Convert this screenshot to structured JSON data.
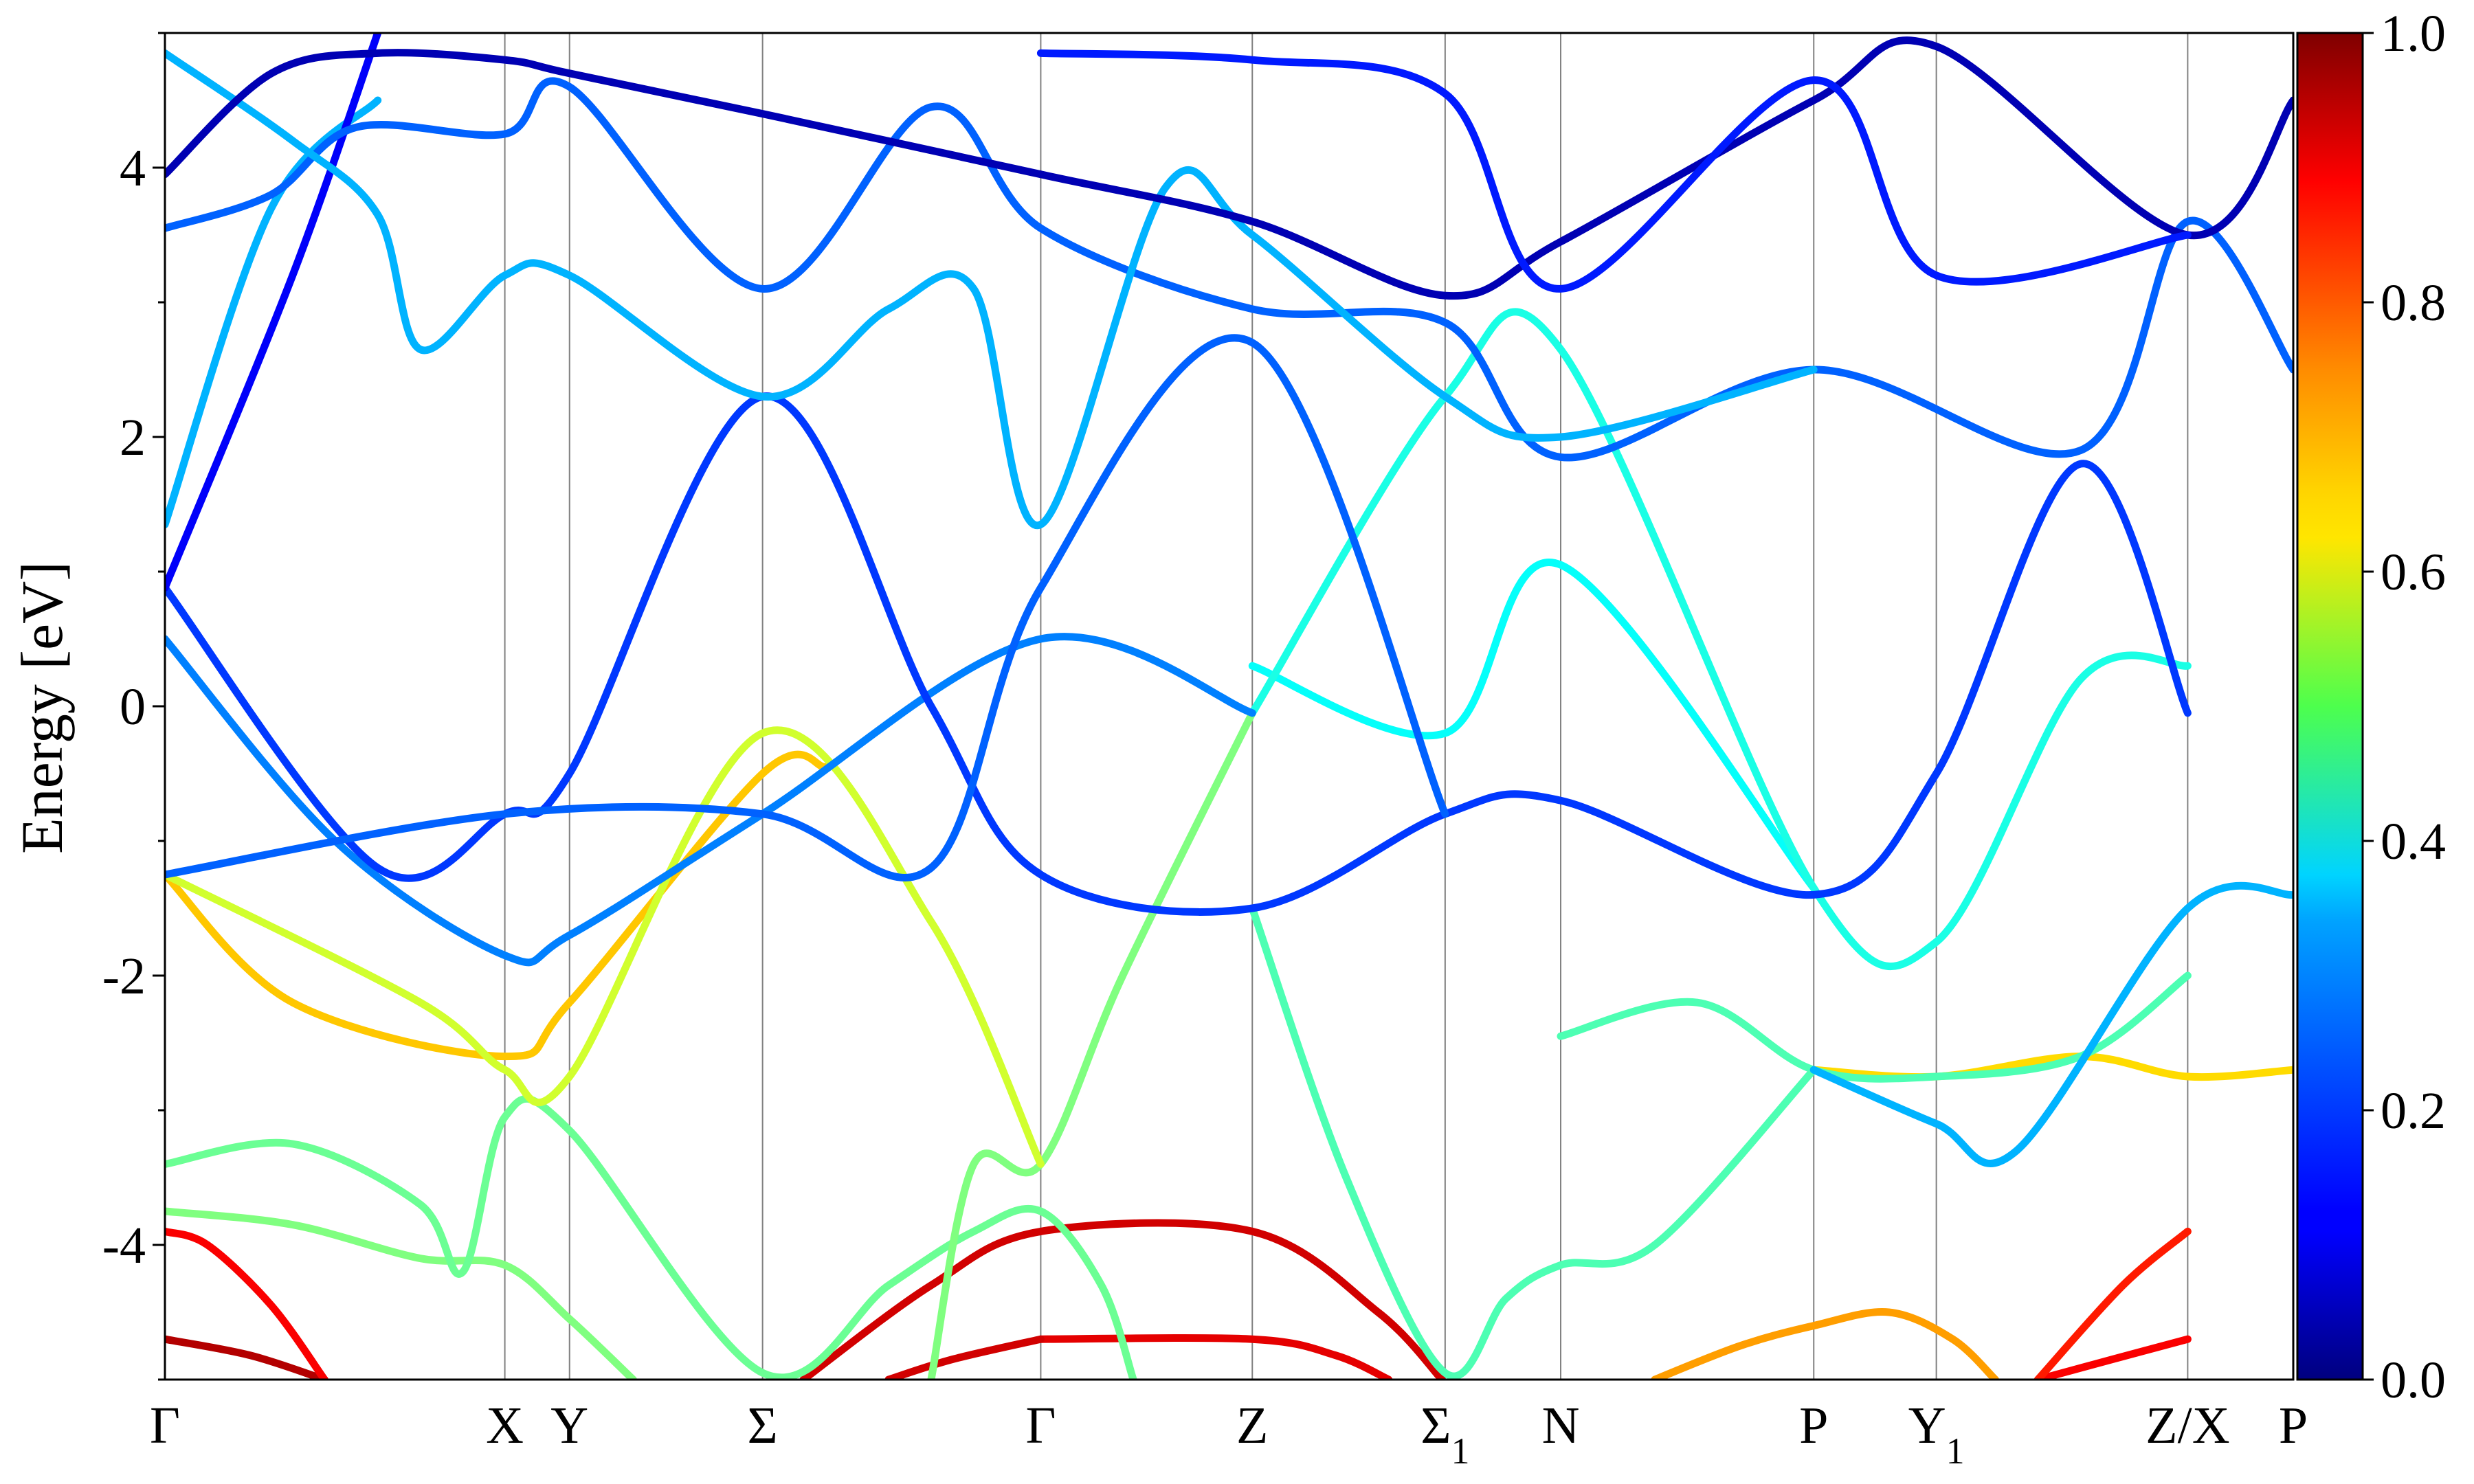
{
  "chart_data": {
    "type": "line",
    "title": "",
    "xlabel": "",
    "ylabel": "Energy [eV]",
    "ylim": [
      -5,
      5
    ],
    "yticks": [
      {
        "value": 4,
        "label": "4"
      },
      {
        "value": 2,
        "label": "2"
      },
      {
        "value": 0,
        "label": "0"
      },
      {
        "value": -2,
        "label": "-2"
      },
      {
        "value": -4,
        "label": "-4"
      }
    ],
    "xlim": [
      0,
      1
    ],
    "kpoints": [
      {
        "pos": 0.0,
        "label": "Γ",
        "sub": ""
      },
      {
        "pos": 0.1597,
        "label": "X",
        "sub": ""
      },
      {
        "pos": 0.1901,
        "label": "Y",
        "sub": ""
      },
      {
        "pos": 0.2808,
        "label": "Σ",
        "sub": ""
      },
      {
        "pos": 0.4115,
        "label": "Γ",
        "sub": ""
      },
      {
        "pos": 0.5109,
        "label": "Z",
        "sub": ""
      },
      {
        "pos": 0.6015,
        "label": "Σ",
        "sub": "1"
      },
      {
        "pos": 0.6558,
        "label": "N",
        "sub": ""
      },
      {
        "pos": 0.7747,
        "label": "P",
        "sub": ""
      },
      {
        "pos": 0.8323,
        "label": "Y",
        "sub": "1"
      },
      {
        "pos": 0.9504,
        "label": "Z/X",
        "sub": ""
      },
      {
        "pos": 1.0,
        "label": "P",
        "sub": ""
      }
    ],
    "colorbar": {
      "colormap": "jet",
      "range": [
        0.0,
        1.0
      ],
      "ticks": [
        {
          "value": 1.0,
          "label": "1.0"
        },
        {
          "value": 0.8,
          "label": "0.8"
        },
        {
          "value": 0.6,
          "label": "0.6"
        },
        {
          "value": 0.4,
          "label": "0.4"
        },
        {
          "value": 0.2,
          "label": "0.2"
        },
        {
          "value": 0.0,
          "label": "0.0"
        }
      ]
    },
    "bands": [
      {
        "c": 0.95,
        "pts": [
          [
            0,
            -4.7
          ],
          [
            0.04,
            -4.82
          ],
          [
            0.075,
            -5.0
          ]
        ]
      },
      {
        "c": 0.9,
        "pts": [
          [
            0.4115,
            -4.7
          ],
          [
            0.5109,
            -4.7
          ],
          [
            0.55,
            -4.82
          ],
          [
            0.575,
            -5.0
          ]
        ]
      },
      {
        "c": 0.92,
        "pts": [
          [
            0.34,
            -5.0
          ],
          [
            0.37,
            -4.85
          ],
          [
            0.4115,
            -4.7
          ]
        ]
      },
      {
        "c": 0.88,
        "pts": [
          [
            0.88,
            -5.0
          ],
          [
            0.915,
            -4.85
          ],
          [
            0.9504,
            -4.7
          ]
        ]
      },
      {
        "c": 0.88,
        "pts": [
          [
            0,
            -3.9
          ],
          [
            0.02,
            -4.0
          ],
          [
            0.05,
            -4.45
          ],
          [
            0.075,
            -5.0
          ]
        ]
      },
      {
        "c": 0.92,
        "pts": [
          [
            0.3,
            -5.0
          ],
          [
            0.36,
            -4.3
          ],
          [
            0.4115,
            -3.9
          ],
          [
            0.5109,
            -3.9
          ],
          [
            0.57,
            -4.5
          ],
          [
            0.6,
            -5.0
          ]
        ]
      },
      {
        "c": 0.85,
        "pts": [
          [
            0.88,
            -5.0
          ],
          [
            0.92,
            -4.3
          ],
          [
            0.9504,
            -3.9
          ]
        ]
      },
      {
        "c": 0.72,
        "pts": [
          [
            0.7,
            -5.0
          ],
          [
            0.74,
            -4.75
          ],
          [
            0.7747,
            -4.6
          ],
          [
            0.81,
            -4.5
          ],
          [
            0.84,
            -4.7
          ],
          [
            0.86,
            -5.0
          ]
        ]
      },
      {
        "c": 0.5,
        "pts": [
          [
            0,
            -3.75
          ],
          [
            0.06,
            -3.85
          ],
          [
            0.12,
            -4.1
          ],
          [
            0.1597,
            -4.15
          ],
          [
            0.1901,
            -4.55
          ],
          [
            0.22,
            -5.0
          ]
        ]
      },
      {
        "c": 0.48,
        "pts": [
          [
            0,
            -3.4
          ],
          [
            0.06,
            -3.25
          ],
          [
            0.12,
            -3.7
          ],
          [
            0.14,
            -4.2
          ],
          [
            0.1597,
            -3.05
          ],
          [
            0.1901,
            -3.15
          ],
          [
            0.2808,
            -4.95
          ],
          [
            0.34,
            -4.3
          ],
          [
            0.38,
            -3.9
          ],
          [
            0.4115,
            -3.75
          ],
          [
            0.44,
            -4.3
          ],
          [
            0.455,
            -5.0
          ]
        ]
      },
      {
        "c": 0.5,
        "pts": [
          [
            0.36,
            -5.0
          ],
          [
            0.38,
            -3.4
          ],
          [
            0.4115,
            -3.4
          ],
          [
            0.45,
            -2.0
          ],
          [
            0.5109,
            -0.05
          ]
        ]
      },
      {
        "c": 0.45,
        "pts": [
          [
            0.5109,
            -1.5
          ],
          [
            0.555,
            -3.5
          ],
          [
            0.6015,
            -4.95
          ],
          [
            0.63,
            -4.4
          ],
          [
            0.6558,
            -4.15
          ],
          [
            0.7,
            -4.0
          ],
          [
            0.7747,
            -2.7
          ]
        ]
      },
      {
        "c": 0.68,
        "pts": [
          [
            0,
            -1.25
          ],
          [
            0.06,
            -2.2
          ],
          [
            0.1597,
            -2.6
          ],
          [
            0.1901,
            -2.2
          ],
          [
            0.2808,
            -0.5
          ],
          [
            0.31,
            -0.45
          ]
        ]
      },
      {
        "c": 0.58,
        "pts": [
          [
            0,
            -1.25
          ],
          [
            0.12,
            -2.2
          ],
          [
            0.1597,
            -2.7
          ],
          [
            0.1901,
            -2.75
          ],
          [
            0.2808,
            -0.2
          ],
          [
            0.36,
            -1.6
          ],
          [
            0.4115,
            -3.4
          ]
        ]
      },
      {
        "c": 0.66,
        "pts": [
          [
            0.7747,
            -2.7
          ],
          [
            0.8323,
            -2.75
          ],
          [
            0.9,
            -2.6
          ],
          [
            0.9504,
            -2.75
          ],
          [
            1.0,
            -2.7
          ]
        ]
      },
      {
        "c": 0.38,
        "pts": [
          [
            0.5109,
            0.3
          ],
          [
            0.6015,
            -0.2
          ],
          [
            0.6558,
            1.05
          ],
          [
            0.7747,
            -1.35
          ]
        ]
      },
      {
        "c": 0.45,
        "pts": [
          [
            0.6558,
            -2.45
          ],
          [
            0.72,
            -2.2
          ],
          [
            0.7747,
            -2.7
          ],
          [
            0.8323,
            -2.75
          ],
          [
            0.9,
            -2.6
          ],
          [
            0.9504,
            -2.0
          ]
        ]
      },
      {
        "c": 0.3,
        "pts": [
          [
            0.7747,
            -2.7
          ],
          [
            0.8323,
            -3.1
          ],
          [
            0.87,
            -3.3
          ],
          [
            0.9504,
            -1.5
          ],
          [
            1.0,
            -1.4
          ]
        ]
      },
      {
        "c": 0.4,
        "pts": [
          [
            0.5109,
            -0.05
          ],
          [
            0.6015,
            2.3
          ],
          [
            0.6558,
            2.65
          ],
          [
            0.7747,
            -1.35
          ],
          [
            0.8323,
            -1.75
          ],
          [
            0.9,
            0.2
          ],
          [
            0.9504,
            0.3
          ]
        ]
      },
      {
        "c": 0.25,
        "pts": [
          [
            0,
            0.5
          ],
          [
            0.08,
            -1.0
          ],
          [
            0.1597,
            -1.85
          ],
          [
            0.1901,
            -1.7
          ],
          [
            0.2808,
            -0.8
          ],
          [
            0.4115,
            0.5
          ],
          [
            0.5109,
            -0.05
          ]
        ]
      },
      {
        "c": 0.18,
        "pts": [
          [
            0,
            0.88
          ],
          [
            0.1,
            -1.2
          ],
          [
            0.1597,
            -0.8
          ],
          [
            0.1901,
            -0.5
          ],
          [
            0.2808,
            2.3
          ],
          [
            0.36,
            0.0
          ],
          [
            0.4115,
            -1.25
          ],
          [
            0.5109,
            -1.5
          ],
          [
            0.6015,
            -0.8
          ],
          [
            0.6558,
            -0.7
          ],
          [
            0.7747,
            -1.4
          ],
          [
            0.8323,
            -0.5
          ],
          [
            0.9,
            1.8
          ],
          [
            0.9504,
            -0.05
          ]
        ]
      },
      {
        "c": 0.22,
        "pts": [
          [
            0,
            -1.25
          ],
          [
            0.1597,
            -0.8
          ],
          [
            0.2808,
            -0.8
          ],
          [
            0.36,
            -1.2
          ],
          [
            0.4115,
            0.88
          ],
          [
            0.5109,
            2.7
          ],
          [
            0.6015,
            -0.8
          ]
        ]
      },
      {
        "c": 0.3,
        "pts": [
          [
            0,
            1.35
          ],
          [
            0.05,
            3.7
          ],
          [
            0.1,
            4.5
          ]
        ]
      },
      {
        "c": 0.12,
        "pts": [
          [
            0,
            0.88
          ],
          [
            0.06,
            3.2
          ],
          [
            0.1,
            5.0
          ]
        ]
      },
      {
        "c": 0.22,
        "pts": [
          [
            0,
            3.55
          ],
          [
            0.05,
            3.8
          ],
          [
            0.09,
            4.3
          ],
          [
            0.1597,
            4.25
          ],
          [
            0.1901,
            4.6
          ],
          [
            0.2808,
            3.1
          ],
          [
            0.36,
            4.45
          ],
          [
            0.4115,
            3.55
          ],
          [
            0.5109,
            2.95
          ],
          [
            0.6015,
            2.85
          ],
          [
            0.6558,
            1.85
          ],
          [
            0.7747,
            2.5
          ],
          [
            0.9,
            1.9
          ],
          [
            0.9504,
            3.6
          ],
          [
            1.0,
            2.5
          ]
        ]
      },
      {
        "c": 0.3,
        "pts": [
          [
            0,
            4.85
          ],
          [
            0.06,
            4.2
          ],
          [
            0.1,
            3.65
          ],
          [
            0.12,
            2.65
          ],
          [
            0.1597,
            3.2
          ],
          [
            0.1901,
            3.2
          ],
          [
            0.2808,
            2.3
          ],
          [
            0.34,
            2.95
          ],
          [
            0.38,
            3.1
          ],
          [
            0.4115,
            1.35
          ],
          [
            0.47,
            3.85
          ],
          [
            0.5109,
            3.5
          ],
          [
            0.6015,
            2.3
          ],
          [
            0.6558,
            2.0
          ],
          [
            0.7747,
            2.5
          ]
        ]
      },
      {
        "c": 0.05,
        "pts": [
          [
            0,
            3.95
          ],
          [
            0.05,
            4.7
          ],
          [
            0.1,
            4.85
          ],
          [
            0.1597,
            4.8
          ],
          [
            0.1901,
            4.7
          ],
          [
            0.2808,
            4.4
          ],
          [
            0.4115,
            3.95
          ],
          [
            0.5109,
            3.6
          ],
          [
            0.6015,
            3.05
          ],
          [
            0.6558,
            3.45
          ],
          [
            0.7747,
            4.5
          ],
          [
            0.8323,
            4.9
          ],
          [
            0.9504,
            3.5
          ],
          [
            1.0,
            4.5
          ]
        ]
      },
      {
        "c": 0.15,
        "pts": [
          [
            0.4115,
            4.85
          ],
          [
            0.5109,
            4.8
          ],
          [
            0.6015,
            4.55
          ],
          [
            0.6558,
            3.1
          ],
          [
            0.7747,
            4.65
          ],
          [
            0.8323,
            3.2
          ],
          [
            0.9504,
            3.5
          ]
        ]
      }
    ]
  }
}
